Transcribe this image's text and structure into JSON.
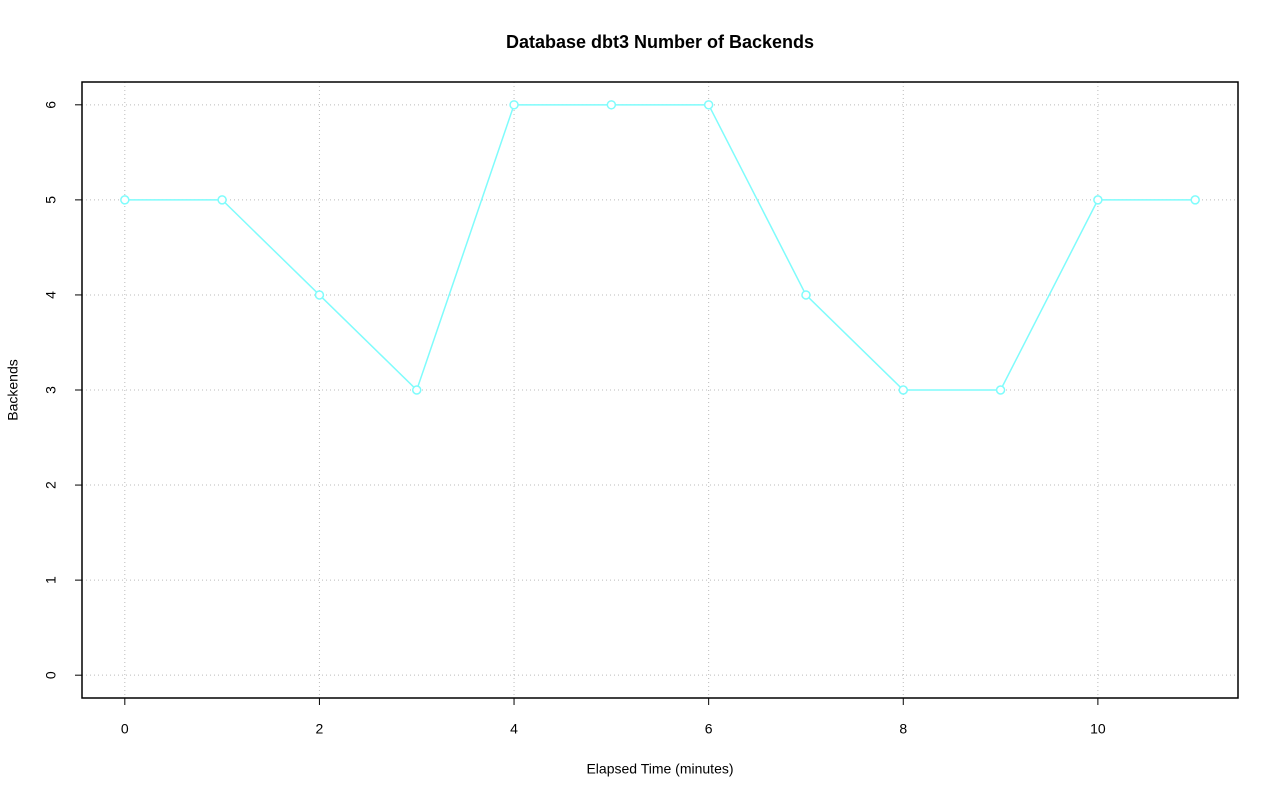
{
  "chart_data": {
    "type": "line",
    "title": "Database dbt3 Number of Backends",
    "x_label": "Elapsed Time (minutes)",
    "y_label": "Backends",
    "x": [
      0,
      1,
      2,
      3,
      4,
      5,
      6,
      7,
      8,
      9,
      10,
      11
    ],
    "series": [
      {
        "color": "#7ffcfc",
        "values": [
          5,
          5,
          4,
          3,
          6,
          6,
          6,
          4,
          3,
          3,
          5,
          5
        ]
      }
    ],
    "xlim": [
      -0.44,
      11.44
    ],
    "ylim": [
      -0.24,
      6.24
    ],
    "xticks": [
      0,
      2,
      4,
      6,
      8,
      10
    ],
    "yticks": [
      0,
      1,
      2,
      3,
      4,
      5,
      6
    ],
    "grid": true
  }
}
